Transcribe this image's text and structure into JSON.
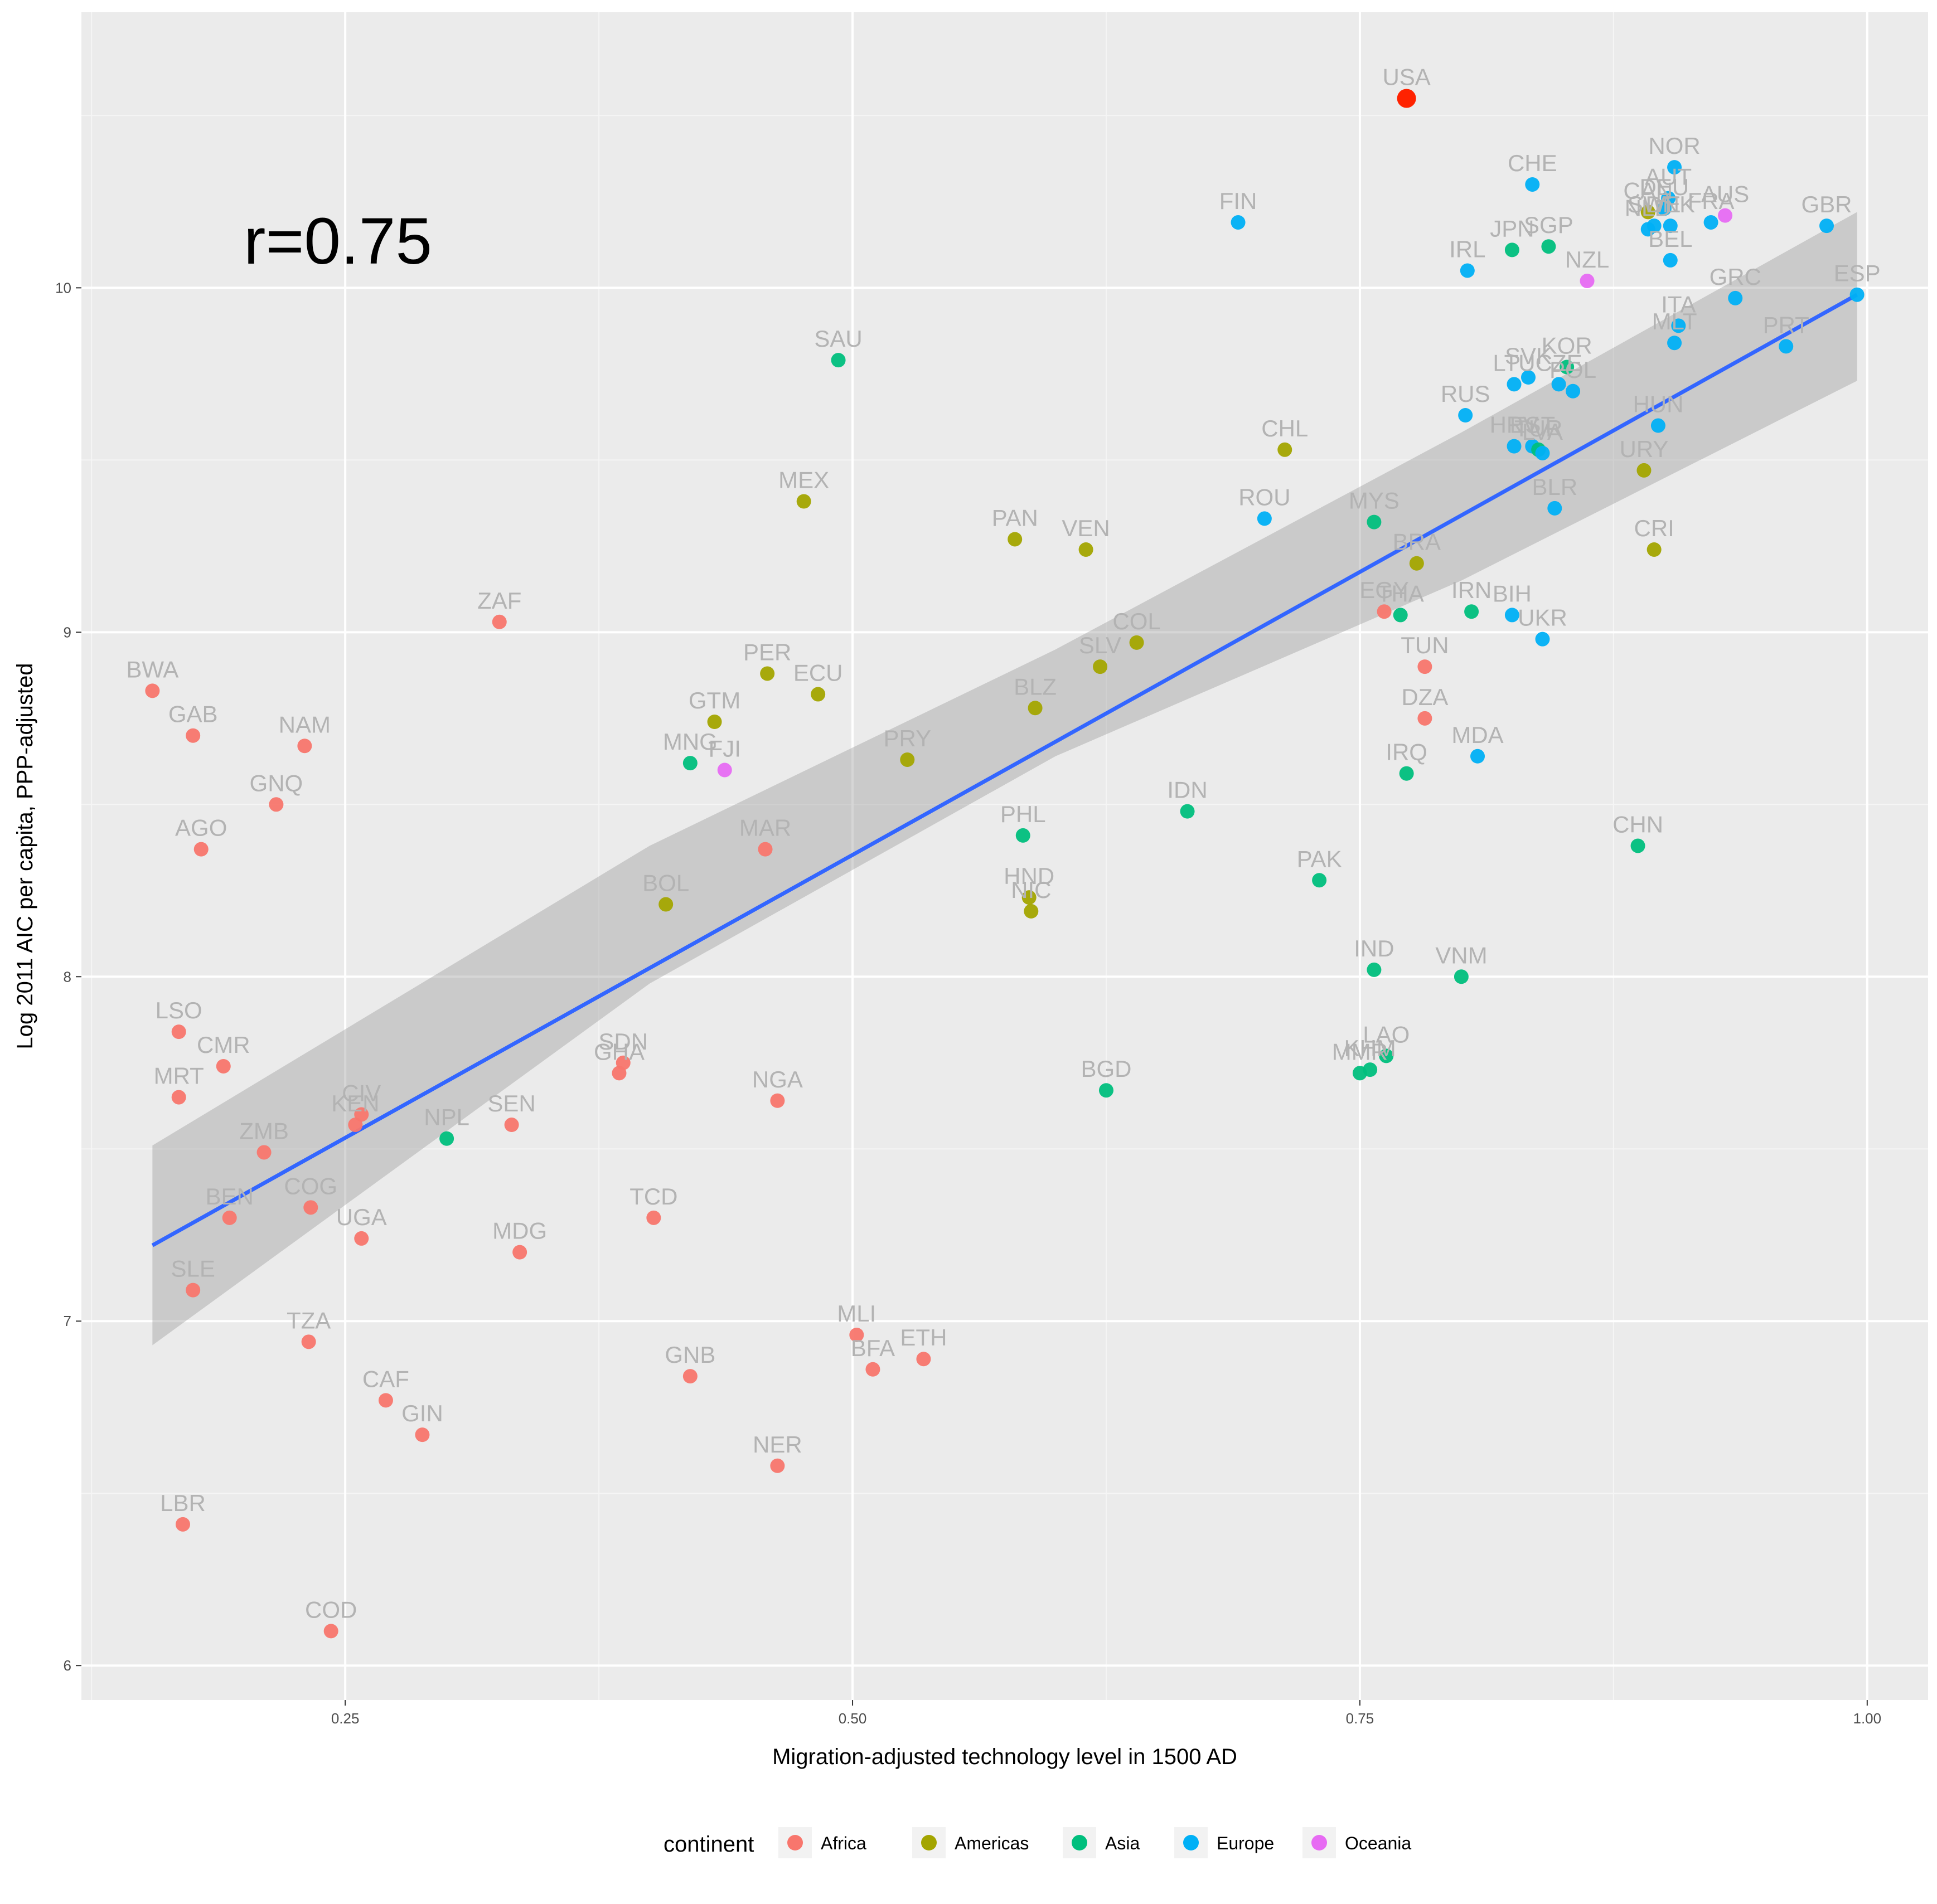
{
  "chart_data": {
    "type": "scatter",
    "xlabel": "Migration-adjusted technology level in 1500 AD",
    "ylabel": "Log 2011 AIC per capita, PPP-adjusted",
    "xlim": [
      0.12,
      1.03
    ],
    "ylim": [
      5.9,
      10.8
    ],
    "xticks": [
      0.25,
      0.5,
      0.75,
      1.0
    ],
    "xtick_labels": [
      "0.25",
      "0.50",
      "0.75",
      "1.00"
    ],
    "yticks": [
      6,
      7,
      8,
      9,
      10
    ],
    "ytick_labels": [
      "6",
      "7",
      "8",
      "9",
      "10"
    ],
    "grid": true,
    "annotation": "r=0.75",
    "legend": {
      "title": "continent",
      "placement": "bottom",
      "entries": [
        {
          "name": "Africa",
          "color": "#F8766D"
        },
        {
          "name": "Americas",
          "color": "#A3A500"
        },
        {
          "name": "Asia",
          "color": "#00BF7D"
        },
        {
          "name": "Europe",
          "color": "#00B0F6"
        },
        {
          "name": "Oceania",
          "color": "#E76BF3"
        }
      ]
    },
    "fit_line": {
      "color": "#3366FF",
      "x": [
        0.155,
        0.995
      ],
      "y": [
        7.22,
        9.98
      ]
    },
    "confidence_band": {
      "color": "#999999",
      "x": [
        0.155,
        0.4,
        0.6,
        0.8,
        0.995
      ],
      "upper": [
        7.51,
        8.38,
        8.95,
        9.58,
        10.22
      ],
      "lower": [
        6.93,
        7.98,
        8.64,
        9.15,
        9.73
      ]
    },
    "highlight": {
      "label": "USA",
      "color": "#FF2200"
    },
    "points": [
      {
        "label": "USA",
        "continent": "Europe",
        "x": 0.773,
        "y": 10.55
      },
      {
        "label": "NOR",
        "continent": "Europe",
        "x": 0.905,
        "y": 10.35
      },
      {
        "label": "AUT",
        "continent": "Europe",
        "x": 0.902,
        "y": 10.26
      },
      {
        "label": "CHE",
        "continent": "Europe",
        "x": 0.835,
        "y": 10.3
      },
      {
        "label": "CAN",
        "continent": "Americas",
        "x": 0.892,
        "y": 10.22
      },
      {
        "label": "DEU",
        "continent": "Europe",
        "x": 0.9,
        "y": 10.23
      },
      {
        "label": "AUS",
        "continent": "Oceania",
        "x": 0.93,
        "y": 10.21
      },
      {
        "label": "GBR",
        "continent": "Europe",
        "x": 0.98,
        "y": 10.18
      },
      {
        "label": "SWE",
        "continent": "Europe",
        "x": 0.895,
        "y": 10.18
      },
      {
        "label": "DNK",
        "continent": "Europe",
        "x": 0.903,
        "y": 10.18
      },
      {
        "label": "FRA",
        "continent": "Europe",
        "x": 0.923,
        "y": 10.19
      },
      {
        "label": "NLD",
        "continent": "Europe",
        "x": 0.892,
        "y": 10.17
      },
      {
        "label": "FIN",
        "continent": "Europe",
        "x": 0.69,
        "y": 10.19
      },
      {
        "label": "SGP",
        "continent": "Asia",
        "x": 0.843,
        "y": 10.12
      },
      {
        "label": "JPN",
        "continent": "Asia",
        "x": 0.825,
        "y": 10.11
      },
      {
        "label": "BEL",
        "continent": "Europe",
        "x": 0.903,
        "y": 10.08
      },
      {
        "label": "IRL",
        "continent": "Europe",
        "x": 0.803,
        "y": 10.05
      },
      {
        "label": "NZL",
        "continent": "Oceania",
        "x": 0.862,
        "y": 10.02
      },
      {
        "label": "ESP",
        "continent": "Europe",
        "x": 0.995,
        "y": 9.98
      },
      {
        "label": "GRC",
        "continent": "Europe",
        "x": 0.935,
        "y": 9.97
      },
      {
        "label": "ITA",
        "continent": "Europe",
        "x": 0.907,
        "y": 9.89
      },
      {
        "label": "PRT",
        "continent": "Europe",
        "x": 0.96,
        "y": 9.83
      },
      {
        "label": "MLT",
        "continent": "Europe",
        "x": 0.905,
        "y": 9.84
      },
      {
        "label": "KOR",
        "continent": "Asia",
        "x": 0.852,
        "y": 9.77
      },
      {
        "label": "SAU",
        "continent": "Asia",
        "x": 0.493,
        "y": 9.79
      },
      {
        "label": "SVK",
        "continent": "Europe",
        "x": 0.833,
        "y": 9.74
      },
      {
        "label": "LTU",
        "continent": "Europe",
        "x": 0.826,
        "y": 9.72
      },
      {
        "label": "CZE",
        "continent": "Europe",
        "x": 0.848,
        "y": 9.72
      },
      {
        "label": "POL",
        "continent": "Europe",
        "x": 0.855,
        "y": 9.7
      },
      {
        "label": "RUS",
        "continent": "Europe",
        "x": 0.802,
        "y": 9.63
      },
      {
        "label": "HUN",
        "continent": "Europe",
        "x": 0.897,
        "y": 9.6
      },
      {
        "label": "EST",
        "continent": "Europe",
        "x": 0.835,
        "y": 9.54
      },
      {
        "label": "HRV",
        "continent": "Europe",
        "x": 0.826,
        "y": 9.54
      },
      {
        "label": "TUR",
        "continent": "Asia",
        "x": 0.838,
        "y": 9.53
      },
      {
        "label": "LVA",
        "continent": "Europe",
        "x": 0.84,
        "y": 9.52
      },
      {
        "label": "CHL",
        "continent": "Americas",
        "x": 0.713,
        "y": 9.53
      },
      {
        "label": "URY",
        "continent": "Americas",
        "x": 0.89,
        "y": 9.47
      },
      {
        "label": "MEX",
        "continent": "Americas",
        "x": 0.476,
        "y": 9.38
      },
      {
        "label": "BLR",
        "continent": "Europe",
        "x": 0.846,
        "y": 9.36
      },
      {
        "label": "ROU",
        "continent": "Europe",
        "x": 0.703,
        "y": 9.33
      },
      {
        "label": "MYS",
        "continent": "Asia",
        "x": 0.757,
        "y": 9.32
      },
      {
        "label": "PAN",
        "continent": "Americas",
        "x": 0.58,
        "y": 9.27
      },
      {
        "label": "VEN",
        "continent": "Americas",
        "x": 0.615,
        "y": 9.24
      },
      {
        "label": "CRI",
        "continent": "Americas",
        "x": 0.895,
        "y": 9.24
      },
      {
        "label": "BRA",
        "continent": "Americas",
        "x": 0.778,
        "y": 9.2
      },
      {
        "label": "IRN",
        "continent": "Asia",
        "x": 0.805,
        "y": 9.06
      },
      {
        "label": "EGY",
        "continent": "Africa",
        "x": 0.762,
        "y": 9.06
      },
      {
        "label": "THA",
        "continent": "Asia",
        "x": 0.77,
        "y": 9.05
      },
      {
        "label": "BIH",
        "continent": "Europe",
        "x": 0.825,
        "y": 9.05
      },
      {
        "label": "ZAF",
        "continent": "Africa",
        "x": 0.326,
        "y": 9.03
      },
      {
        "label": "UKR",
        "continent": "Europe",
        "x": 0.84,
        "y": 8.98
      },
      {
        "label": "COL",
        "continent": "Americas",
        "x": 0.64,
        "y": 8.97
      },
      {
        "label": "TUN",
        "continent": "Africa",
        "x": 0.782,
        "y": 8.9
      },
      {
        "label": "SLV",
        "continent": "Americas",
        "x": 0.622,
        "y": 8.9
      },
      {
        "label": "PER",
        "continent": "Americas",
        "x": 0.458,
        "y": 8.88
      },
      {
        "label": "ECU",
        "continent": "Americas",
        "x": 0.483,
        "y": 8.82
      },
      {
        "label": "BWA",
        "continent": "Africa",
        "x": 0.155,
        "y": 8.83
      },
      {
        "label": "BLZ",
        "continent": "Americas",
        "x": 0.59,
        "y": 8.78
      },
      {
        "label": "DZA",
        "continent": "Africa",
        "x": 0.782,
        "y": 8.75
      },
      {
        "label": "GTM",
        "continent": "Americas",
        "x": 0.432,
        "y": 8.74
      },
      {
        "label": "GAB",
        "continent": "Africa",
        "x": 0.175,
        "y": 8.7
      },
      {
        "label": "NAM",
        "continent": "Africa",
        "x": 0.23,
        "y": 8.67
      },
      {
        "label": "MDA",
        "continent": "Europe",
        "x": 0.808,
        "y": 8.64
      },
      {
        "label": "PRY",
        "continent": "Americas",
        "x": 0.527,
        "y": 8.63
      },
      {
        "label": "MNG",
        "continent": "Asia",
        "x": 0.42,
        "y": 8.62
      },
      {
        "label": "IRQ",
        "continent": "Asia",
        "x": 0.773,
        "y": 8.59
      },
      {
        "label": "FJI",
        "continent": "Oceania",
        "x": 0.437,
        "y": 8.6
      },
      {
        "label": "GNQ",
        "continent": "Africa",
        "x": 0.216,
        "y": 8.5
      },
      {
        "label": "IDN",
        "continent": "Asia",
        "x": 0.665,
        "y": 8.48
      },
      {
        "label": "PHL",
        "continent": "Asia",
        "x": 0.584,
        "y": 8.41
      },
      {
        "label": "CHN",
        "continent": "Asia",
        "x": 0.887,
        "y": 8.38
      },
      {
        "label": "AGO",
        "continent": "Africa",
        "x": 0.179,
        "y": 8.37
      },
      {
        "label": "MAR",
        "continent": "Africa",
        "x": 0.457,
        "y": 8.37
      },
      {
        "label": "PAK",
        "continent": "Asia",
        "x": 0.73,
        "y": 8.28
      },
      {
        "label": "HND",
        "continent": "Americas",
        "x": 0.587,
        "y": 8.23
      },
      {
        "label": "BOL",
        "continent": "Americas",
        "x": 0.408,
        "y": 8.21
      },
      {
        "label": "NIC",
        "continent": "Americas",
        "x": 0.588,
        "y": 8.19
      },
      {
        "label": "IND",
        "continent": "Asia",
        "x": 0.757,
        "y": 8.02
      },
      {
        "label": "VNM",
        "continent": "Asia",
        "x": 0.8,
        "y": 8.0
      },
      {
        "label": "LSO",
        "continent": "Africa",
        "x": 0.168,
        "y": 7.84
      },
      {
        "label": "LAO",
        "continent": "Asia",
        "x": 0.763,
        "y": 7.77
      },
      {
        "label": "SDN",
        "continent": "Africa",
        "x": 0.387,
        "y": 7.75
      },
      {
        "label": "CMR",
        "continent": "Africa",
        "x": 0.19,
        "y": 7.74
      },
      {
        "label": "KHM",
        "continent": "Asia",
        "x": 0.755,
        "y": 7.73
      },
      {
        "label": "MMR",
        "continent": "Asia",
        "x": 0.75,
        "y": 7.72
      },
      {
        "label": "GHA",
        "continent": "Africa",
        "x": 0.385,
        "y": 7.72
      },
      {
        "label": "BGD",
        "continent": "Asia",
        "x": 0.625,
        "y": 7.67
      },
      {
        "label": "MRT",
        "continent": "Africa",
        "x": 0.168,
        "y": 7.65
      },
      {
        "label": "NGA",
        "continent": "Africa",
        "x": 0.463,
        "y": 7.64
      },
      {
        "label": "CIV",
        "continent": "Africa",
        "x": 0.258,
        "y": 7.6
      },
      {
        "label": "KEN",
        "continent": "Africa",
        "x": 0.255,
        "y": 7.57
      },
      {
        "label": "SEN",
        "continent": "Africa",
        "x": 0.332,
        "y": 7.57
      },
      {
        "label": "NPL",
        "continent": "Asia",
        "x": 0.3,
        "y": 7.53
      },
      {
        "label": "ZMB",
        "continent": "Africa",
        "x": 0.21,
        "y": 7.49
      },
      {
        "label": "COG",
        "continent": "Africa",
        "x": 0.233,
        "y": 7.33
      },
      {
        "label": "BEN",
        "continent": "Africa",
        "x": 0.193,
        "y": 7.3
      },
      {
        "label": "TCD",
        "continent": "Africa",
        "x": 0.402,
        "y": 7.3
      },
      {
        "label": "UGA",
        "continent": "Africa",
        "x": 0.258,
        "y": 7.24
      },
      {
        "label": "MDG",
        "continent": "Africa",
        "x": 0.336,
        "y": 7.2
      },
      {
        "label": "SLE",
        "continent": "Africa",
        "x": 0.175,
        "y": 7.09
      },
      {
        "label": "MLI",
        "continent": "Africa",
        "x": 0.502,
        "y": 6.96
      },
      {
        "label": "TZA",
        "continent": "Africa",
        "x": 0.232,
        "y": 6.94
      },
      {
        "label": "ETH",
        "continent": "Africa",
        "x": 0.535,
        "y": 6.89
      },
      {
        "label": "BFA",
        "continent": "Africa",
        "x": 0.51,
        "y": 6.86
      },
      {
        "label": "GNB",
        "continent": "Africa",
        "x": 0.42,
        "y": 6.84
      },
      {
        "label": "CAF",
        "continent": "Africa",
        "x": 0.27,
        "y": 6.77
      },
      {
        "label": "GIN",
        "continent": "Africa",
        "x": 0.288,
        "y": 6.67
      },
      {
        "label": "NER",
        "continent": "Africa",
        "x": 0.463,
        "y": 6.58
      },
      {
        "label": "LBR",
        "continent": "Africa",
        "x": 0.17,
        "y": 6.41
      },
      {
        "label": "COD",
        "continent": "Africa",
        "x": 0.243,
        "y": 6.1
      }
    ]
  }
}
